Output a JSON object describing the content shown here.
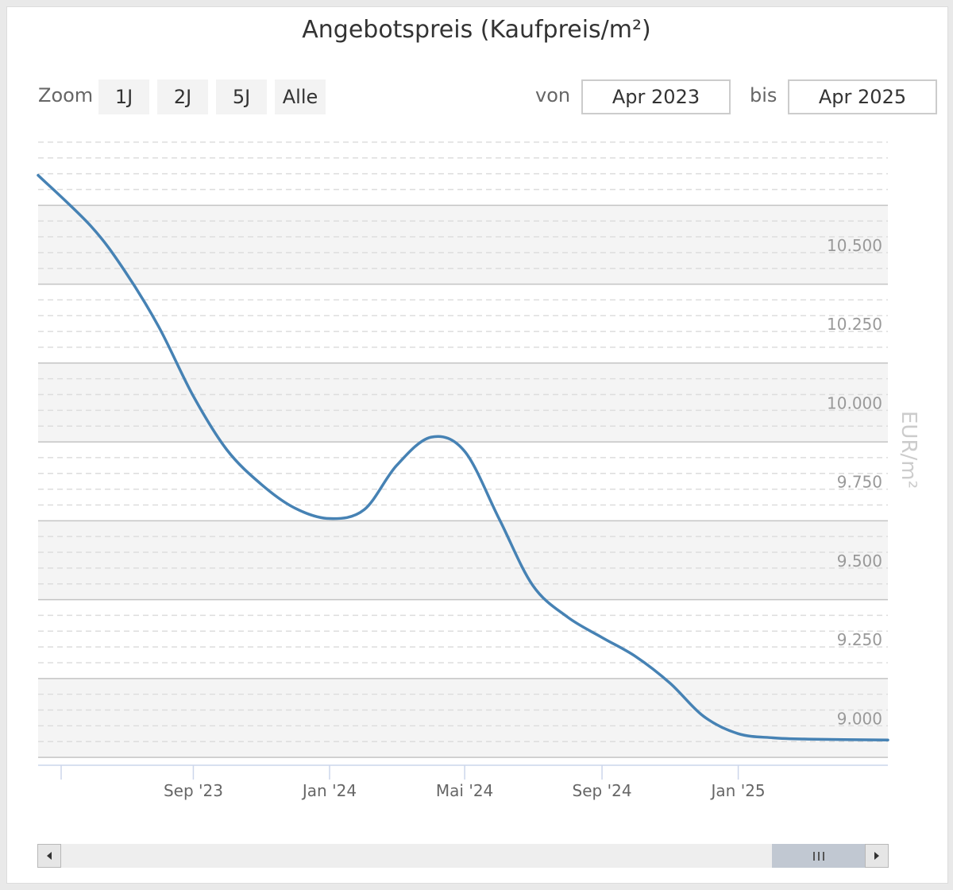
{
  "title": "Angebotspreis (Kaufpreis/m²)",
  "zoom": {
    "label": "Zoom",
    "buttons": [
      "1J",
      "2J",
      "5J",
      "Alle"
    ]
  },
  "range": {
    "from_label": "von",
    "from_value": "Apr 2023",
    "to_label": "bis",
    "to_value": "Apr 2025"
  },
  "colors": {
    "line": "#4682b4",
    "band": "#f4f4f4",
    "axis_title": "#cccccc",
    "tick_label": "#999999"
  },
  "chart_data": {
    "type": "line",
    "title": "Angebotspreis (Kaufpreis/m²)",
    "ylabel": "EUR/m²",
    "xlabel": "",
    "ylim": [
      8850,
      10850
    ],
    "xlim": [
      "2023-04-15",
      "2025-05-15"
    ],
    "x_ticks": [
      {
        "date": "2023-09-01",
        "label": "Sep '23"
      },
      {
        "date": "2024-01-01",
        "label": "Jan '24"
      },
      {
        "date": "2024-05-01",
        "label": "Mai '24"
      },
      {
        "date": "2024-09-01",
        "label": "Sep '24"
      },
      {
        "date": "2025-01-01",
        "label": "Jan '25"
      }
    ],
    "y_ticks": [
      {
        "value": 9000,
        "label": "9.000"
      },
      {
        "value": 9250,
        "label": "9.250"
      },
      {
        "value": 9500,
        "label": "9.500"
      },
      {
        "value": 9750,
        "label": "9.750"
      },
      {
        "value": 10000,
        "label": "10.000"
      },
      {
        "value": 10250,
        "label": "10.250"
      },
      {
        "value": 10500,
        "label": "10.500"
      }
    ],
    "grid": true,
    "alternate_bands": true,
    "legend": "none",
    "series": [
      {
        "x": [
          "2023-04-15",
          "2023-06-01",
          "2023-07-01",
          "2023-08-01",
          "2023-09-01",
          "2023-10-01",
          "2023-11-01",
          "2023-12-01",
          "2024-01-01",
          "2024-02-01",
          "2024-03-01",
          "2024-04-01",
          "2024-05-01",
          "2024-06-01",
          "2024-07-01",
          "2024-08-01",
          "2024-09-01",
          "2024-10-01",
          "2024-11-01",
          "2024-12-01",
          "2025-01-01",
          "2025-02-01",
          "2025-03-01",
          "2025-05-15"
        ],
        "y": [
          10720,
          10560,
          10420,
          10240,
          10020,
          9850,
          9740,
          9665,
          9632,
          9660,
          9800,
          9890,
          9845,
          9630,
          9420,
          9320,
          9255,
          9195,
          9110,
          9005,
          8950,
          8937,
          8933,
          8930
        ]
      }
    ]
  },
  "scrollbar": {
    "left_arrow": "left-arrow-icon",
    "right_arrow": "right-arrow-icon"
  }
}
